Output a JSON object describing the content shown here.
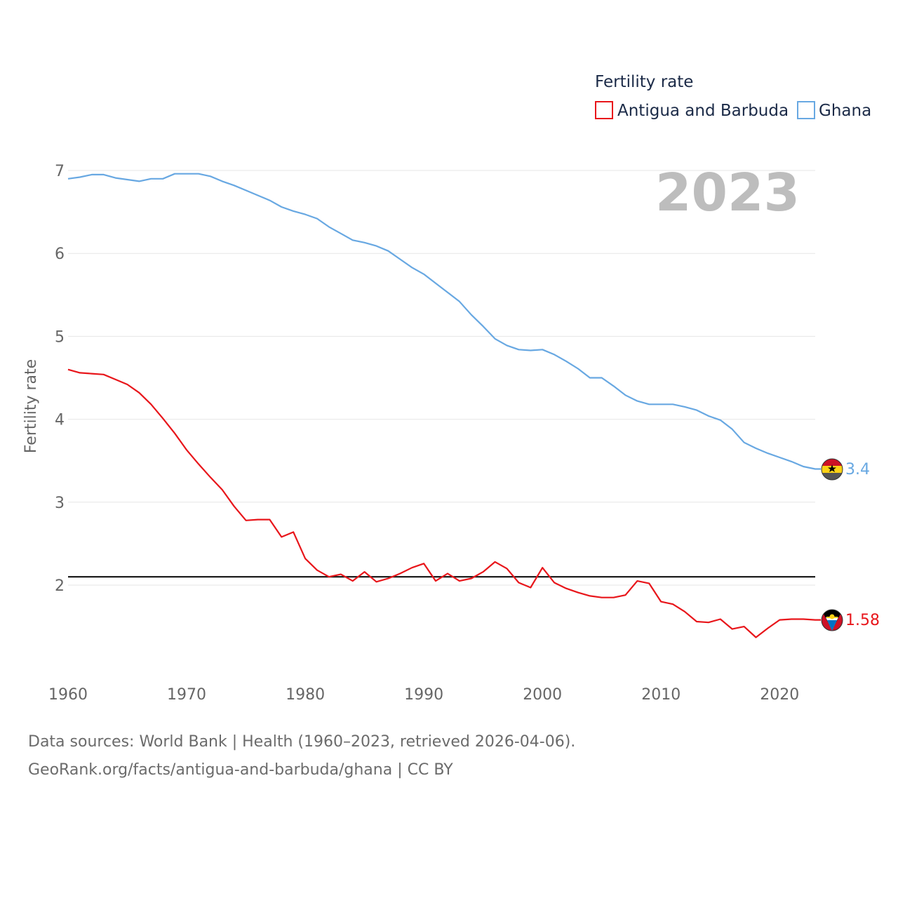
{
  "chart_data": {
    "type": "line",
    "legend_title": "Fertility rate",
    "ylabel": "Fertility rate",
    "xlabel": "",
    "current_year": "2023",
    "x_ticks": [
      1960,
      1970,
      1980,
      1990,
      2000,
      2010,
      2020
    ],
    "y_ticks": [
      2,
      3,
      4,
      5,
      6,
      7
    ],
    "xlim": [
      1960,
      2023
    ],
    "ylim": [
      1,
      7.2
    ],
    "reference_line": 2.1,
    "series": [
      {
        "name": "Antigua and Barbuda",
        "color": "#e8161b",
        "end_label": "1.58",
        "flag": "antigua-and-barbuda",
        "x": [
          1960,
          1961,
          1962,
          1963,
          1964,
          1965,
          1966,
          1967,
          1968,
          1969,
          1970,
          1971,
          1972,
          1973,
          1974,
          1975,
          1976,
          1977,
          1978,
          1979,
          1980,
          1981,
          1982,
          1983,
          1984,
          1985,
          1986,
          1987,
          1988,
          1989,
          1990,
          1991,
          1992,
          1993,
          1994,
          1995,
          1996,
          1997,
          1998,
          1999,
          2000,
          2001,
          2002,
          2003,
          2004,
          2005,
          2006,
          2007,
          2008,
          2009,
          2010,
          2011,
          2012,
          2013,
          2014,
          2015,
          2016,
          2017,
          2018,
          2019,
          2020,
          2021,
          2022,
          2023
        ],
        "values": [
          4.6,
          4.56,
          4.55,
          4.54,
          4.48,
          4.42,
          4.32,
          4.18,
          4.01,
          3.83,
          3.63,
          3.46,
          3.3,
          3.15,
          2.95,
          2.78,
          2.79,
          2.79,
          2.58,
          2.64,
          2.32,
          2.18,
          2.1,
          2.13,
          2.05,
          2.16,
          2.04,
          2.08,
          2.14,
          2.21,
          2.26,
          2.05,
          2.14,
          2.05,
          2.08,
          2.16,
          2.28,
          2.2,
          2.03,
          1.97,
          2.21,
          2.03,
          1.96,
          1.91,
          1.87,
          1.85,
          1.85,
          1.88,
          2.05,
          2.02,
          1.8,
          1.77,
          1.68,
          1.56,
          1.55,
          1.59,
          1.47,
          1.5,
          1.37,
          1.48,
          1.58,
          1.59,
          1.59,
          1.58
        ]
      },
      {
        "name": "Ghana",
        "color": "#68a8e2",
        "end_label": "3.4",
        "flag": "ghana",
        "x": [
          1960,
          1961,
          1962,
          1963,
          1964,
          1965,
          1966,
          1967,
          1968,
          1969,
          1970,
          1971,
          1972,
          1973,
          1974,
          1975,
          1976,
          1977,
          1978,
          1979,
          1980,
          1981,
          1982,
          1983,
          1984,
          1985,
          1986,
          1987,
          1988,
          1989,
          1990,
          1991,
          1992,
          1993,
          1994,
          1995,
          1996,
          1997,
          1998,
          1999,
          2000,
          2001,
          2002,
          2003,
          2004,
          2005,
          2006,
          2007,
          2008,
          2009,
          2010,
          2011,
          2012,
          2013,
          2014,
          2015,
          2016,
          2017,
          2018,
          2019,
          2020,
          2021,
          2022,
          2023
        ],
        "values": [
          6.9,
          6.92,
          6.95,
          6.95,
          6.91,
          6.89,
          6.87,
          6.9,
          6.9,
          6.96,
          6.96,
          6.96,
          6.93,
          6.87,
          6.82,
          6.76,
          6.7,
          6.64,
          6.56,
          6.51,
          6.47,
          6.42,
          6.32,
          6.24,
          6.16,
          6.13,
          6.09,
          6.03,
          5.93,
          5.83,
          5.75,
          5.64,
          5.53,
          5.42,
          5.26,
          5.12,
          4.97,
          4.89,
          4.84,
          4.83,
          4.84,
          4.78,
          4.7,
          4.61,
          4.5,
          4.5,
          4.4,
          4.29,
          4.22,
          4.18,
          4.18,
          4.18,
          4.15,
          4.11,
          4.04,
          3.99,
          3.88,
          3.72,
          3.65,
          3.59,
          3.54,
          3.49,
          3.43,
          3.4
        ]
      }
    ]
  },
  "source": {
    "line1": "Data sources: World Bank | Health (1960–2023, retrieved 2026-04-06).",
    "line2": "GeoRank.org/facts/antigua-and-barbuda/ghana | CC BY"
  }
}
